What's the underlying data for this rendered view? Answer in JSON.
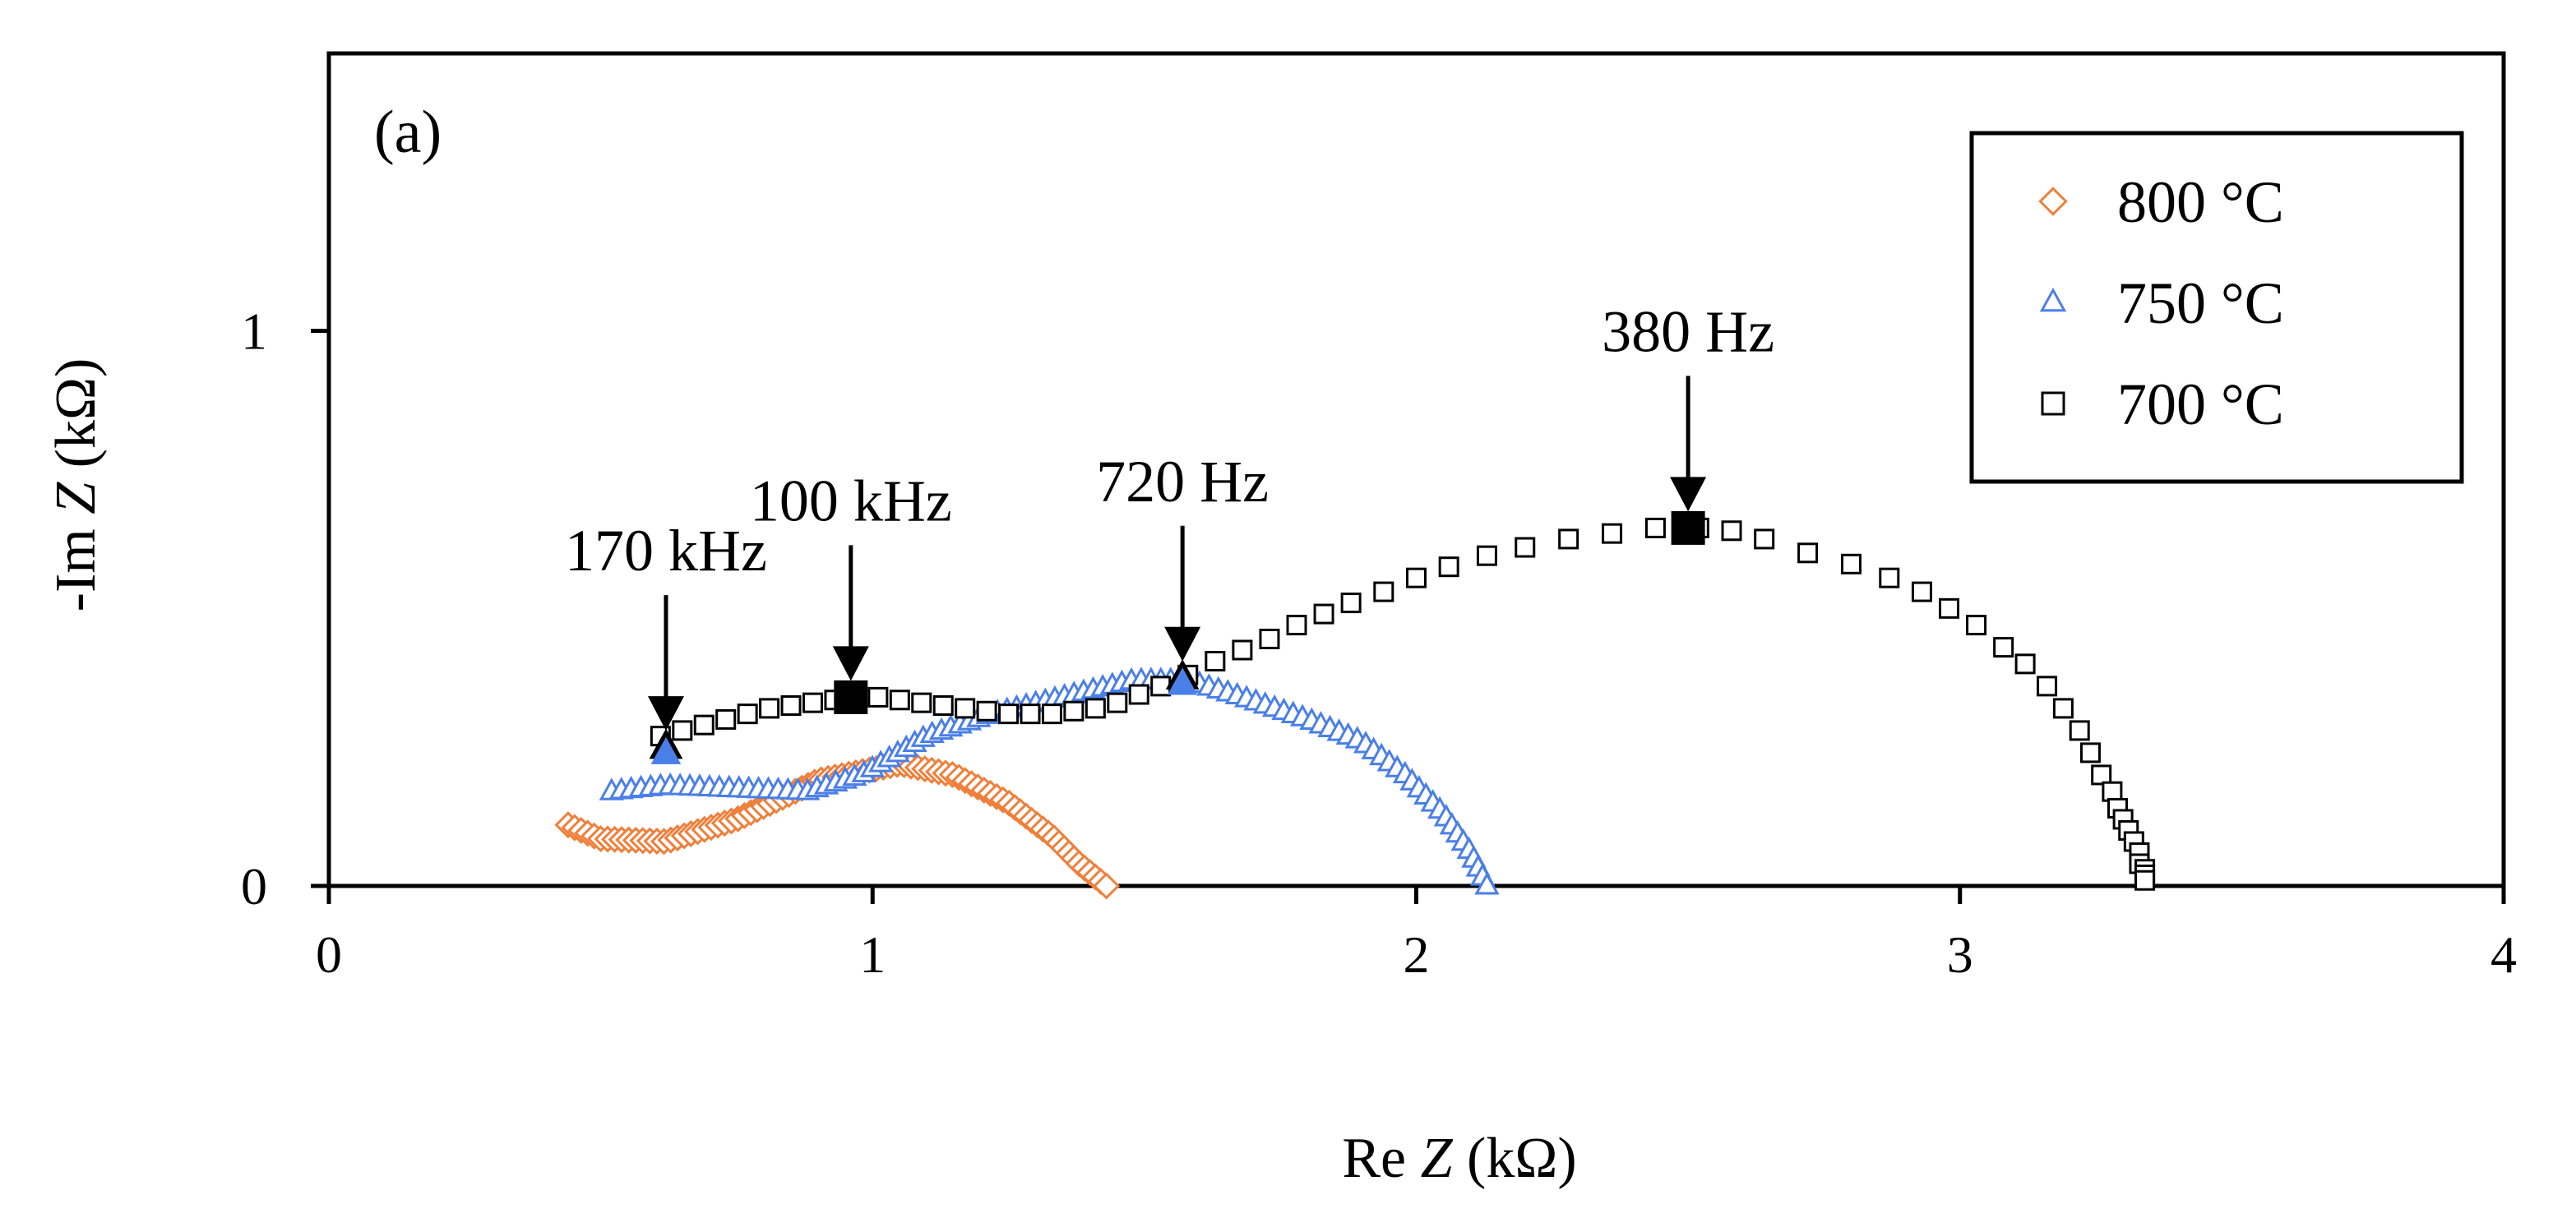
{
  "chart_data": {
    "type": "scatter",
    "panel_label": "(a)",
    "xlabel": {
      "pre": "Re ",
      "var": "Z",
      "post": " (kΩ)"
    },
    "ylabel": {
      "pre": "-Im ",
      "var": "Z",
      "post": " (kΩ)"
    },
    "xlim": [
      0,
      4
    ],
    "ylim": [
      0,
      1.5
    ],
    "x_ticks": [
      0,
      1,
      2,
      3,
      4
    ],
    "y_ticks": [
      0,
      1
    ],
    "x_tick_labels": [
      "0",
      "1",
      "2",
      "3",
      "4"
    ],
    "y_tick_labels": [
      "0",
      "1"
    ],
    "grid": false,
    "legend_position": "top-right",
    "series": [
      {
        "name": "800 °C",
        "marker": "diamond",
        "color": "#f07f3a",
        "anchors": [
          [
            0.44,
            0.11
          ],
          [
            0.5,
            0.085
          ],
          [
            0.62,
            0.08
          ],
          [
            0.75,
            0.12
          ],
          [
            0.9,
            0.19
          ],
          [
            1.05,
            0.22
          ],
          [
            1.15,
            0.2
          ],
          [
            1.25,
            0.15
          ],
          [
            1.33,
            0.09
          ],
          [
            1.38,
            0.04
          ],
          [
            1.43,
            0.0
          ]
        ],
        "count": 85
      },
      {
        "name": "750 °C",
        "marker": "triangle",
        "color": "#4a7fe8",
        "anchors": [
          [
            0.52,
            0.17
          ],
          [
            0.62,
            0.18
          ],
          [
            0.75,
            0.175
          ],
          [
            0.88,
            0.17
          ],
          [
            0.98,
            0.2
          ],
          [
            1.1,
            0.27
          ],
          [
            1.22,
            0.31
          ],
          [
            1.35,
            0.34
          ],
          [
            1.48,
            0.37
          ],
          [
            1.58,
            0.37
          ],
          [
            1.68,
            0.34
          ],
          [
            1.8,
            0.3
          ],
          [
            1.9,
            0.26
          ],
          [
            1.98,
            0.2
          ],
          [
            2.05,
            0.13
          ],
          [
            2.1,
            0.06
          ],
          [
            2.13,
            0.0
          ]
        ],
        "count": 100
      },
      {
        "name": "700 °C",
        "marker": "square",
        "color": "#000000",
        "points": [
          [
            0.61,
            0.27
          ],
          [
            0.65,
            0.28
          ],
          [
            0.69,
            0.29
          ],
          [
            0.73,
            0.3
          ],
          [
            0.77,
            0.31
          ],
          [
            0.81,
            0.32
          ],
          [
            0.85,
            0.325
          ],
          [
            0.89,
            0.33
          ],
          [
            0.93,
            0.335
          ],
          [
            0.97,
            0.34
          ],
          [
            1.01,
            0.34
          ],
          [
            1.05,
            0.335
          ],
          [
            1.09,
            0.33
          ],
          [
            1.13,
            0.325
          ],
          [
            1.17,
            0.32
          ],
          [
            1.21,
            0.315
          ],
          [
            1.25,
            0.31
          ],
          [
            1.29,
            0.31
          ],
          [
            1.33,
            0.31
          ],
          [
            1.37,
            0.315
          ],
          [
            1.41,
            0.32
          ],
          [
            1.45,
            0.33
          ],
          [
            1.49,
            0.345
          ],
          [
            1.53,
            0.36
          ],
          [
            1.58,
            0.38
          ],
          [
            1.63,
            0.405
          ],
          [
            1.68,
            0.425
          ],
          [
            1.73,
            0.445
          ],
          [
            1.78,
            0.47
          ],
          [
            1.83,
            0.49
          ],
          [
            1.88,
            0.51
          ],
          [
            1.94,
            0.53
          ],
          [
            2.0,
            0.555
          ],
          [
            2.06,
            0.575
          ],
          [
            2.13,
            0.595
          ],
          [
            2.2,
            0.61
          ],
          [
            2.28,
            0.625
          ],
          [
            2.36,
            0.635
          ],
          [
            2.44,
            0.645
          ],
          [
            2.52,
            0.645
          ],
          [
            2.58,
            0.64
          ],
          [
            2.64,
            0.625
          ],
          [
            2.72,
            0.6
          ],
          [
            2.8,
            0.58
          ],
          [
            2.87,
            0.555
          ],
          [
            2.93,
            0.53
          ],
          [
            2.98,
            0.5
          ],
          [
            3.03,
            0.47
          ],
          [
            3.08,
            0.43
          ],
          [
            3.12,
            0.4
          ],
          [
            3.16,
            0.36
          ],
          [
            3.19,
            0.32
          ],
          [
            3.22,
            0.28
          ],
          [
            3.24,
            0.24
          ],
          [
            3.26,
            0.2
          ],
          [
            3.28,
            0.17
          ],
          [
            3.29,
            0.14
          ],
          [
            3.3,
            0.12
          ],
          [
            3.31,
            0.1
          ],
          [
            3.32,
            0.08
          ],
          [
            3.33,
            0.06
          ],
          [
            3.33,
            0.04
          ],
          [
            3.34,
            0.03
          ],
          [
            3.34,
            0.02
          ],
          [
            3.34,
            0.01
          ]
        ]
      }
    ],
    "annotations": [
      {
        "text": "170 kHz",
        "x": 0.62,
        "y": 0.25,
        "series": "750 °C",
        "marker": "triangle"
      },
      {
        "text": "100 kHz",
        "x": 0.96,
        "y": 0.34,
        "series": "700 °C",
        "marker": "square"
      },
      {
        "text": "720 Hz",
        "x": 1.57,
        "y": 0.375,
        "series": "750 °C",
        "marker": "triangle"
      },
      {
        "text": "380 Hz",
        "x": 2.5,
        "y": 0.645,
        "series": "700 °C",
        "marker": "square"
      }
    ]
  }
}
